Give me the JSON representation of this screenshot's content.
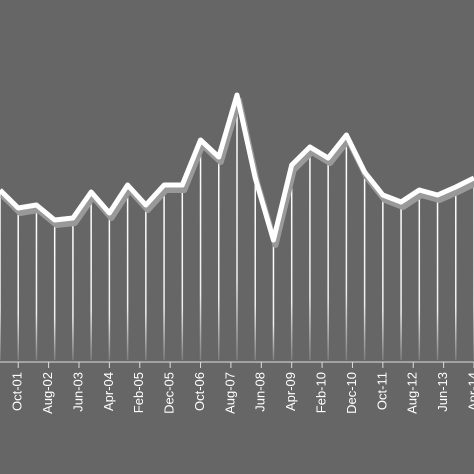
{
  "chart_data": {
    "type": "line",
    "x": [
      0,
      6,
      12,
      18,
      24,
      30,
      36,
      42,
      48,
      54,
      60,
      66,
      72,
      78,
      84,
      90,
      96,
      102,
      108,
      114,
      120,
      126,
      132,
      138,
      144,
      150,
      156
    ],
    "values": [
      170,
      152,
      155,
      140,
      142,
      168,
      147,
      175,
      155,
      175,
      175,
      220,
      203,
      265,
      182,
      120,
      195,
      213,
      202,
      225,
      188,
      165,
      158,
      170,
      165,
      173,
      182
    ],
    "color": "#ffffff",
    "xlim": [
      0,
      156
    ],
    "ylim": [
      0,
      360
    ],
    "xticks": [
      {
        "value": 6,
        "label": "Oct-01"
      },
      {
        "value": 16,
        "label": "Aug-02"
      },
      {
        "value": 26,
        "label": "Jun-03"
      },
      {
        "value": 36,
        "label": "Apr-04"
      },
      {
        "value": 46,
        "label": "Feb-05"
      },
      {
        "value": 56,
        "label": "Dec-05"
      },
      {
        "value": 66,
        "label": "Oct-06"
      },
      {
        "value": 76,
        "label": "Aug-07"
      },
      {
        "value": 86,
        "label": "Jun-08"
      },
      {
        "value": 96,
        "label": "Apr-09"
      },
      {
        "value": 106,
        "label": "Feb-10"
      },
      {
        "value": 116,
        "label": "Dec-10"
      },
      {
        "value": 126,
        "label": "Oct-11"
      },
      {
        "value": 136,
        "label": "Aug-12"
      },
      {
        "value": 146,
        "label": "Jun-13"
      },
      {
        "value": 156,
        "label": "Apr-14"
      }
    ]
  }
}
